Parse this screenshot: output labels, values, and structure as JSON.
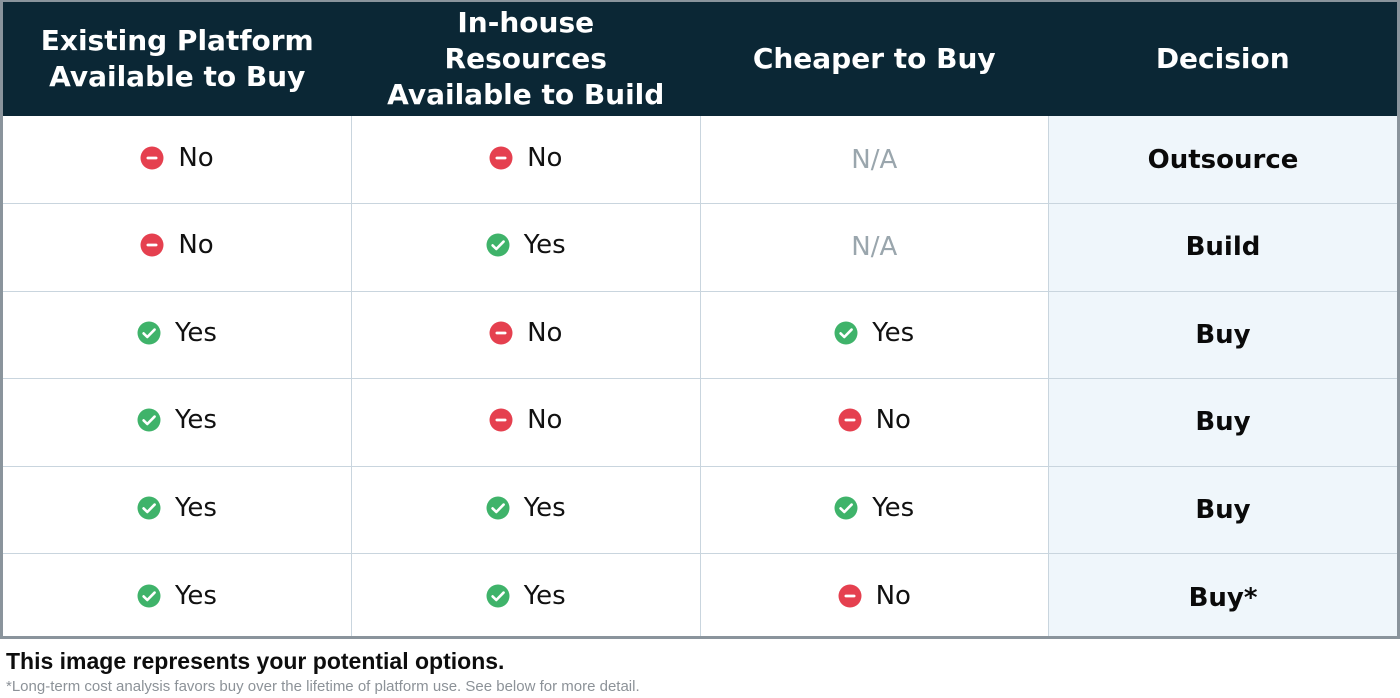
{
  "colors": {
    "header_bg": "#0b2735",
    "header_text": "#ffffff",
    "yes_icon": "#3fb36a",
    "no_icon": "#e5404f",
    "na_text": "#9aa6ad",
    "decision_bg": "#eff6fb",
    "grid_line": "#c9d5de"
  },
  "table": {
    "headers": [
      [
        "Existing Platform",
        "Available to Buy"
      ],
      [
        "In-house Resources",
        "Available to Build"
      ],
      [
        "Cheaper to Buy"
      ],
      [
        "Decision"
      ]
    ],
    "rows": [
      {
        "platform": {
          "text": "No",
          "icon": "minus-circle-icon"
        },
        "resources": {
          "text": "No",
          "icon": "minus-circle-icon"
        },
        "cheaper": {
          "text": "N/A",
          "icon": ""
        },
        "decision": "Outsource"
      },
      {
        "platform": {
          "text": "No",
          "icon": "minus-circle-icon"
        },
        "resources": {
          "text": "Yes",
          "icon": "check-circle-icon"
        },
        "cheaper": {
          "text": "N/A",
          "icon": ""
        },
        "decision": "Build"
      },
      {
        "platform": {
          "text": "Yes",
          "icon": "check-circle-icon"
        },
        "resources": {
          "text": "No",
          "icon": "minus-circle-icon"
        },
        "cheaper": {
          "text": "Yes",
          "icon": "check-circle-icon"
        },
        "decision": "Buy"
      },
      {
        "platform": {
          "text": "Yes",
          "icon": "check-circle-icon"
        },
        "resources": {
          "text": "No",
          "icon": "minus-circle-icon"
        },
        "cheaper": {
          "text": "No",
          "icon": "minus-circle-icon"
        },
        "decision": "Buy"
      },
      {
        "platform": {
          "text": "Yes",
          "icon": "check-circle-icon"
        },
        "resources": {
          "text": "Yes",
          "icon": "check-circle-icon"
        },
        "cheaper": {
          "text": "Yes",
          "icon": "check-circle-icon"
        },
        "decision": "Buy"
      },
      {
        "platform": {
          "text": "Yes",
          "icon": "check-circle-icon"
        },
        "resources": {
          "text": "Yes",
          "icon": "check-circle-icon"
        },
        "cheaper": {
          "text": "No",
          "icon": "minus-circle-icon"
        },
        "decision": "Buy*"
      }
    ]
  },
  "caption": "This image represents your potential options.",
  "footnote": "*Long-term cost analysis favors buy over the lifetime of platform use. See below for more detail."
}
